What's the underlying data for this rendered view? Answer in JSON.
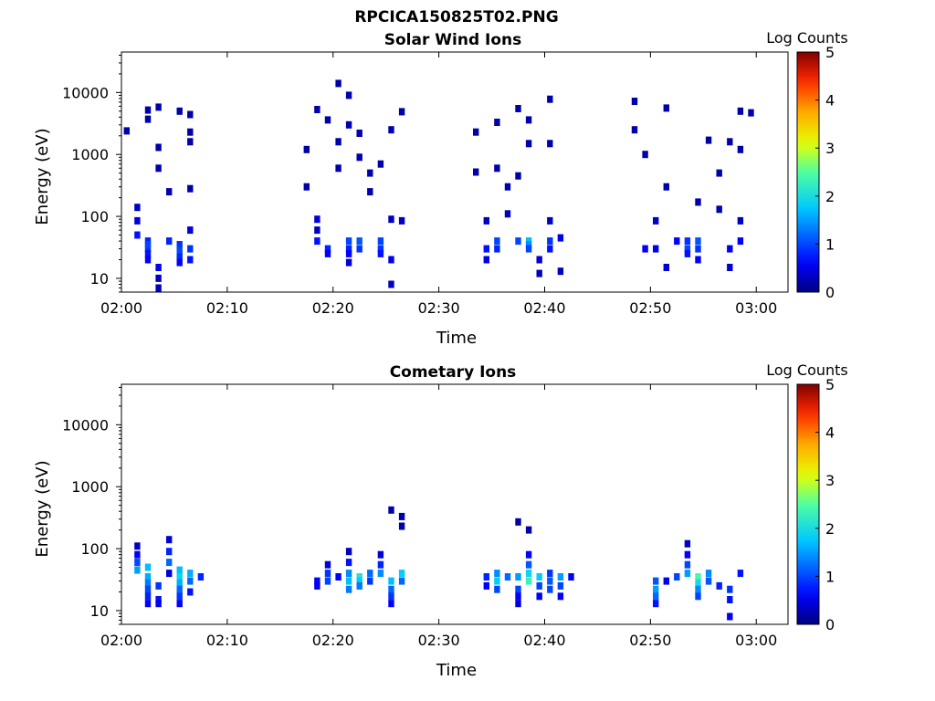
{
  "figure": {
    "title": "RPCICA150825T02.PNG"
  },
  "colors": {
    "colormap": "jet",
    "axis": "#000000",
    "background": "#ffffff"
  },
  "chart_data": [
    {
      "type": "heatmap",
      "title": "Solar Wind Ions",
      "xlabel": "Time",
      "ylabel": "Energy (eV)",
      "x_scale": "time",
      "y_scale": "log",
      "xlim": [
        "02:00",
        "03:03"
      ],
      "ylim": [
        6,
        45000
      ],
      "xticks": [
        "02:00",
        "02:10",
        "02:20",
        "02:30",
        "02:40",
        "02:50",
        "03:00"
      ],
      "yticks": [
        "10",
        "100",
        "1000",
        "10000"
      ],
      "colorbar": {
        "label": "Log Counts",
        "range": [
          0,
          5
        ],
        "ticks": [
          "0",
          "1",
          "2",
          "3",
          "4",
          "5"
        ]
      },
      "points": [
        [
          "02:00",
          2400,
          0.2
        ],
        [
          "02:01",
          140,
          0.3
        ],
        [
          "02:01",
          85,
          0.4
        ],
        [
          "02:01",
          50,
          0.7
        ],
        [
          "02:02",
          40,
          0.8
        ],
        [
          "02:02",
          30,
          0.9
        ],
        [
          "02:02",
          25,
          0.7
        ],
        [
          "02:02",
          20,
          0.6
        ],
        [
          "02:02",
          35,
          1.0
        ],
        [
          "02:03",
          15,
          0.5
        ],
        [
          "02:03",
          10,
          0.3
        ],
        [
          "02:03",
          7,
          0.3
        ],
        [
          "02:02",
          5200,
          0.2
        ],
        [
          "02:02",
          3700,
          0.2
        ],
        [
          "02:03",
          5800,
          0.2
        ],
        [
          "02:03",
          1300,
          0.2
        ],
        [
          "02:03",
          600,
          0.2
        ],
        [
          "02:04",
          250,
          0.2
        ],
        [
          "02:04",
          40,
          0.8
        ],
        [
          "02:05",
          35,
          0.9
        ],
        [
          "02:05",
          28,
          1.0
        ],
        [
          "02:05",
          22,
          0.8
        ],
        [
          "02:05",
          18,
          0.6
        ],
        [
          "02:06",
          30,
          0.9
        ],
        [
          "02:06",
          20,
          0.7
        ],
        [
          "02:06",
          60,
          0.4
        ],
        [
          "02:05",
          5000,
          0.2
        ],
        [
          "02:06",
          4400,
          0.2
        ],
        [
          "02:06",
          1600,
          0.2
        ],
        [
          "02:06",
          2300,
          0.2
        ],
        [
          "02:06",
          280,
          0.2
        ],
        [
          "02:17",
          1200,
          0.2
        ],
        [
          "02:17",
          300,
          0.2
        ],
        [
          "02:18",
          90,
          0.4
        ],
        [
          "02:18",
          60,
          0.3
        ],
        [
          "02:18",
          40,
          0.7
        ],
        [
          "02:19",
          30,
          0.8
        ],
        [
          "02:19",
          25,
          0.6
        ],
        [
          "02:18",
          5300,
          0.2
        ],
        [
          "02:19",
          3600,
          0.2
        ],
        [
          "02:20",
          14000,
          0.2
        ],
        [
          "02:20",
          1600,
          0.2
        ],
        [
          "02:20",
          600,
          0.2
        ],
        [
          "02:21",
          9000,
          0.2
        ],
        [
          "02:21",
          3000,
          0.2
        ],
        [
          "02:21",
          40,
          1.0
        ],
        [
          "02:21",
          30,
          0.8
        ],
        [
          "02:21",
          25,
          0.6
        ],
        [
          "02:21",
          18,
          0.4
        ],
        [
          "02:22",
          40,
          1.1
        ],
        [
          "02:22",
          30,
          0.9
        ],
        [
          "02:22",
          2200,
          0.2
        ],
        [
          "02:22",
          900,
          0.2
        ],
        [
          "02:23",
          500,
          0.2
        ],
        [
          "02:23",
          250,
          0.2
        ],
        [
          "02:24",
          700,
          0.2
        ],
        [
          "02:24",
          40,
          1.0
        ],
        [
          "02:24",
          30,
          0.9
        ],
        [
          "02:24",
          25,
          0.7
        ],
        [
          "02:25",
          20,
          0.5
        ],
        [
          "02:25",
          2500,
          0.2
        ],
        [
          "02:25",
          90,
          0.3
        ],
        [
          "02:25",
          8,
          0.3
        ],
        [
          "02:26",
          4900,
          0.2
        ],
        [
          "02:26",
          85,
          0.3
        ],
        [
          "02:33",
          2300,
          0.2
        ],
        [
          "02:33",
          520,
          0.2
        ],
        [
          "02:34",
          85,
          0.3
        ],
        [
          "02:34",
          30,
          0.7
        ],
        [
          "02:34",
          20,
          0.5
        ],
        [
          "02:35",
          40,
          1.0
        ],
        [
          "02:35",
          30,
          0.8
        ],
        [
          "02:35",
          3300,
          0.2
        ],
        [
          "02:35",
          600,
          0.2
        ],
        [
          "02:36",
          300,
          0.2
        ],
        [
          "02:36",
          110,
          0.3
        ],
        [
          "02:37",
          5500,
          0.2
        ],
        [
          "02:37",
          450,
          0.2
        ],
        [
          "02:37",
          40,
          1.0
        ],
        [
          "02:38",
          40,
          1.7
        ],
        [
          "02:38",
          35,
          1.4
        ],
        [
          "02:38",
          30,
          1.0
        ],
        [
          "02:38",
          1500,
          0.2
        ],
        [
          "02:38",
          3600,
          0.2
        ],
        [
          "02:39",
          20,
          0.4
        ],
        [
          "02:39",
          12,
          0.3
        ],
        [
          "02:40",
          40,
          0.9
        ],
        [
          "02:40",
          30,
          0.7
        ],
        [
          "02:40",
          85,
          0.3
        ],
        [
          "02:40",
          1500,
          0.2
        ],
        [
          "02:40",
          7800,
          0.2
        ],
        [
          "02:41",
          45,
          0.5
        ],
        [
          "02:41",
          13,
          0.3
        ],
        [
          "02:48",
          7200,
          0.2
        ],
        [
          "02:48",
          2500,
          0.2
        ],
        [
          "02:49",
          1000,
          0.2
        ],
        [
          "02:49",
          30,
          0.6
        ],
        [
          "02:50",
          85,
          0.3
        ],
        [
          "02:50",
          30,
          0.5
        ],
        [
          "02:51",
          5600,
          0.2
        ],
        [
          "02:51",
          300,
          0.2
        ],
        [
          "02:51",
          15,
          0.4
        ],
        [
          "02:52",
          40,
          0.6
        ],
        [
          "02:53",
          40,
          0.9
        ],
        [
          "02:53",
          30,
          1.0
        ],
        [
          "02:53",
          25,
          0.7
        ],
        [
          "02:54",
          40,
          1.1
        ],
        [
          "02:54",
          30,
          0.9
        ],
        [
          "02:54",
          20,
          0.6
        ],
        [
          "02:54",
          170,
          0.2
        ],
        [
          "02:55",
          1700,
          0.2
        ],
        [
          "02:56",
          500,
          0.2
        ],
        [
          "02:56",
          130,
          0.2
        ],
        [
          "02:57",
          1600,
          0.2
        ],
        [
          "02:57",
          30,
          0.5
        ],
        [
          "02:57",
          15,
          0.4
        ],
        [
          "02:58",
          40,
          0.6
        ],
        [
          "02:58",
          85,
          0.3
        ],
        [
          "02:58",
          1200,
          0.2
        ],
        [
          "02:58",
          5000,
          0.2
        ],
        [
          "02:59",
          4700,
          0.2
        ]
      ]
    },
    {
      "type": "heatmap",
      "title": "Cometary Ions",
      "xlabel": "Time",
      "ylabel": "Energy (eV)",
      "x_scale": "time",
      "y_scale": "log",
      "xlim": [
        "02:00",
        "03:03"
      ],
      "ylim": [
        6,
        45000
      ],
      "xticks": [
        "02:00",
        "02:10",
        "02:20",
        "02:30",
        "02:40",
        "02:50",
        "03:00"
      ],
      "yticks": [
        "10",
        "100",
        "1000",
        "10000"
      ],
      "colorbar": {
        "label": "Log Counts",
        "range": [
          0,
          5
        ],
        "ticks": [
          "0",
          "1",
          "2",
          "3",
          "4",
          "5"
        ]
      },
      "points": [
        [
          "02:01",
          110,
          0.3
        ],
        [
          "02:01",
          80,
          0.6
        ],
        [
          "02:01",
          60,
          1.0
        ],
        [
          "02:01",
          45,
          1.5
        ],
        [
          "02:02",
          50,
          1.7
        ],
        [
          "02:02",
          35,
          1.6
        ],
        [
          "02:02",
          28,
          1.3
        ],
        [
          "02:02",
          22,
          1.0
        ],
        [
          "02:02",
          17,
          0.8
        ],
        [
          "02:02",
          13,
          0.6
        ],
        [
          "02:03",
          25,
          0.9
        ],
        [
          "02:03",
          15,
          0.7
        ],
        [
          "02:03",
          13,
          0.5
        ],
        [
          "02:04",
          40,
          0.4
        ],
        [
          "02:04",
          140,
          0.4
        ],
        [
          "02:04",
          90,
          0.8
        ],
        [
          "02:04",
          60,
          1.2
        ],
        [
          "02:05",
          45,
          1.7
        ],
        [
          "02:05",
          35,
          1.9
        ],
        [
          "02:05",
          28,
          1.6
        ],
        [
          "02:05",
          22,
          1.2
        ],
        [
          "02:05",
          17,
          0.9
        ],
        [
          "02:05",
          13,
          0.6
        ],
        [
          "02:06",
          40,
          1.6
        ],
        [
          "02:06",
          30,
          1.2
        ],
        [
          "02:06",
          20,
          0.7
        ],
        [
          "02:07",
          35,
          0.8
        ],
        [
          "02:18",
          30,
          0.6
        ],
        [
          "02:18",
          25,
          0.5
        ],
        [
          "02:19",
          40,
          0.9
        ],
        [
          "02:19",
          30,
          1.0
        ],
        [
          "02:19",
          55,
          0.4
        ],
        [
          "02:20",
          35,
          0.6
        ],
        [
          "02:21",
          90,
          0.3
        ],
        [
          "02:21",
          60,
          0.7
        ],
        [
          "02:21",
          40,
          1.4
        ],
        [
          "02:21",
          30,
          1.7
        ],
        [
          "02:21",
          22,
          1.3
        ],
        [
          "02:22",
          35,
          2.1
        ],
        [
          "02:22",
          30,
          1.8
        ],
        [
          "02:22",
          25,
          1.3
        ],
        [
          "02:23",
          40,
          1.2
        ],
        [
          "02:23",
          30,
          0.9
        ],
        [
          "02:24",
          80,
          0.4
        ],
        [
          "02:24",
          55,
          0.8
        ],
        [
          "02:24",
          40,
          1.4
        ],
        [
          "02:25",
          30,
          1.7
        ],
        [
          "02:25",
          22,
          1.2
        ],
        [
          "02:25",
          17,
          0.9
        ],
        [
          "02:25",
          13,
          0.6
        ],
        [
          "02:26",
          40,
          1.8
        ],
        [
          "02:26",
          30,
          1.2
        ],
        [
          "02:25",
          420,
          0.2
        ],
        [
          "02:26",
          330,
          0.2
        ],
        [
          "02:26",
          230,
          0.2
        ],
        [
          "02:34",
          35,
          0.8
        ],
        [
          "02:34",
          25,
          0.6
        ],
        [
          "02:35",
          40,
          1.4
        ],
        [
          "02:35",
          30,
          1.8
        ],
        [
          "02:35",
          22,
          1.0
        ],
        [
          "02:36",
          35,
          1.2
        ],
        [
          "02:37",
          35,
          1.5
        ],
        [
          "02:37",
          22,
          1.0
        ],
        [
          "02:37",
          17,
          0.6
        ],
        [
          "02:37",
          13,
          0.4
        ],
        [
          "02:37",
          270,
          0.2
        ],
        [
          "02:38",
          200,
          0.2
        ],
        [
          "02:38",
          80,
          0.6
        ],
        [
          "02:38",
          55,
          1.1
        ],
        [
          "02:38",
          40,
          1.9
        ],
        [
          "02:38",
          30,
          2.3
        ],
        [
          "02:39",
          35,
          1.8
        ],
        [
          "02:39",
          25,
          1.0
        ],
        [
          "02:39",
          17,
          0.6
        ],
        [
          "02:40",
          40,
          0.9
        ],
        [
          "02:40",
          30,
          1.1
        ],
        [
          "02:40",
          22,
          1.0
        ],
        [
          "02:41",
          35,
          1.5
        ],
        [
          "02:41",
          25,
          1.0
        ],
        [
          "02:41",
          17,
          0.6
        ],
        [
          "02:42",
          35,
          0.6
        ],
        [
          "02:50",
          30,
          1.1
        ],
        [
          "02:50",
          22,
          1.5
        ],
        [
          "02:50",
          17,
          1.2
        ],
        [
          "02:50",
          13,
          0.7
        ],
        [
          "02:51",
          30,
          0.5
        ],
        [
          "02:52",
          35,
          1.0
        ],
        [
          "02:53",
          120,
          0.3
        ],
        [
          "02:53",
          80,
          0.6
        ],
        [
          "02:53",
          55,
          1.0
        ],
        [
          "02:53",
          40,
          1.5
        ],
        [
          "02:54",
          35,
          2.4
        ],
        [
          "02:54",
          28,
          2.0
        ],
        [
          "02:54",
          22,
          1.4
        ],
        [
          "02:54",
          17,
          1.0
        ],
        [
          "02:55",
          40,
          1.4
        ],
        [
          "02:55",
          30,
          1.1
        ],
        [
          "02:56",
          25,
          0.8
        ],
        [
          "02:57",
          22,
          0.9
        ],
        [
          "02:57",
          15,
          0.7
        ],
        [
          "02:57",
          8,
          0.5
        ],
        [
          "02:58",
          40,
          0.7
        ]
      ]
    }
  ]
}
